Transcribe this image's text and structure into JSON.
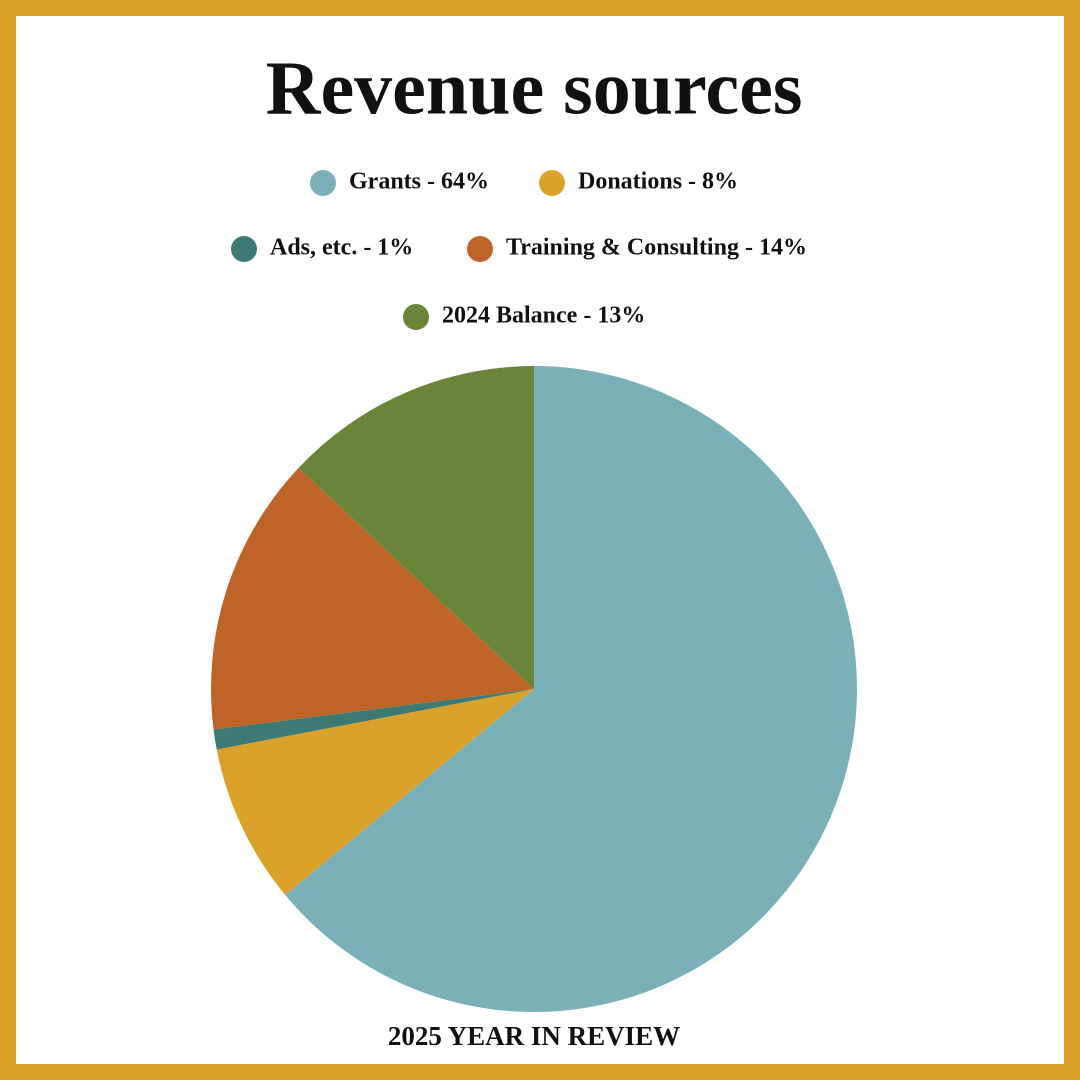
{
  "chart_data": {
    "type": "pie",
    "title": "Revenue sources",
    "categories": [
      "Grants - 64%",
      "Donations - 8%",
      "Ads, etc. - 1%",
      "Training & Consulting - 14%",
      "2024 Balance - 13%"
    ],
    "values": [
      64,
      8,
      1,
      14,
      13
    ],
    "colors": [
      "#7bb0b9",
      "#daa22a",
      "#3e7a74",
      "#be6428",
      "#6a843a"
    ],
    "caption": "2025 YEAR IN REVIEW"
  }
}
